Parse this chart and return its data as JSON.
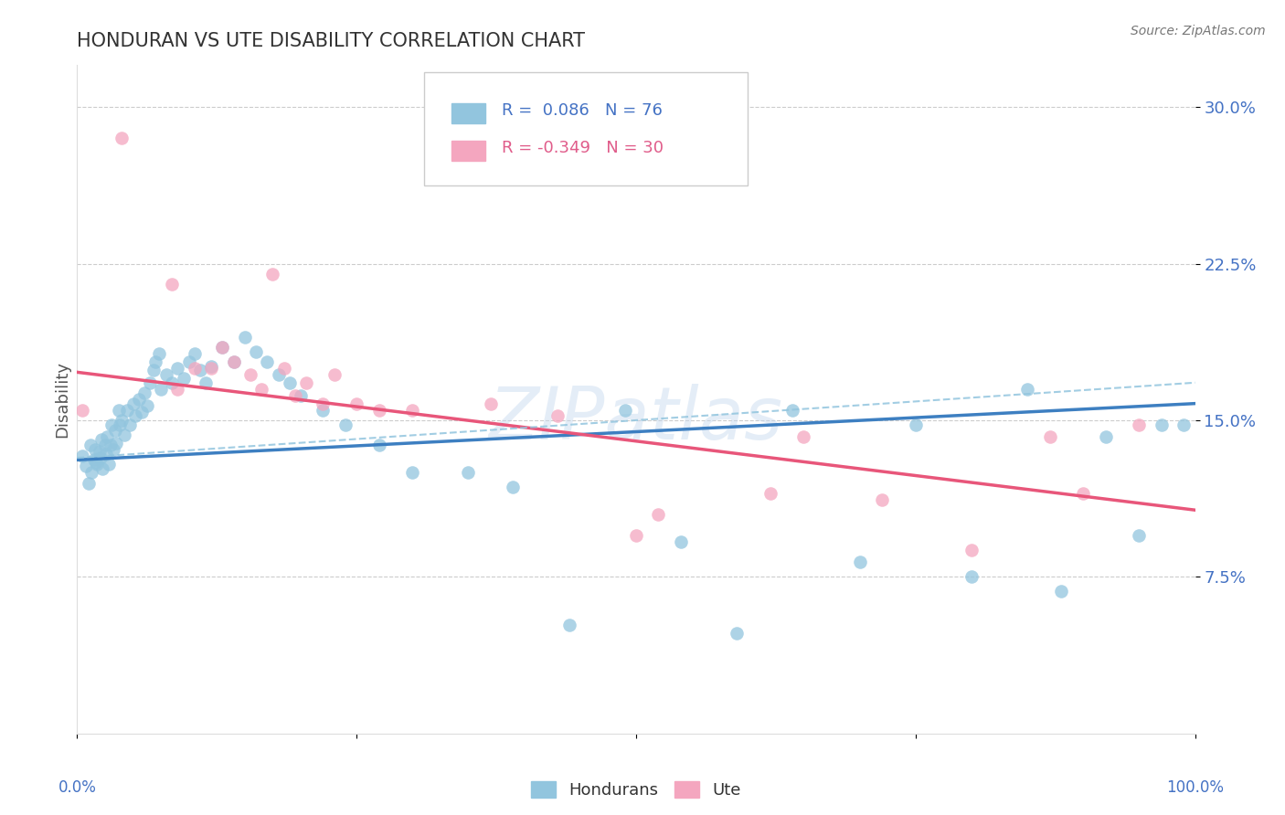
{
  "title": "HONDURAN VS UTE DISABILITY CORRELATION CHART",
  "source": "Source: ZipAtlas.com",
  "ylabel": "Disability",
  "blue_R": 0.086,
  "blue_N": 76,
  "pink_R": -0.349,
  "pink_N": 30,
  "blue_color": "#92c5de",
  "pink_color": "#f4a6bf",
  "blue_line_color": "#3d7fc1",
  "pink_line_color": "#e8567a",
  "dashed_line_color": "#92c5de",
  "legend_label_blue": "Hondurans",
  "legend_label_pink": "Ute",
  "xmin": 0.0,
  "xmax": 1.0,
  "ymin": 0.0,
  "ymax": 0.32,
  "ytick_vals": [
    0.075,
    0.15,
    0.225,
    0.3
  ],
  "ytick_labels": [
    "7.5%",
    "15.0%",
    "22.5%",
    "30.0%"
  ],
  "blue_line_x0": 0.0,
  "blue_line_y0": 0.131,
  "blue_line_x1": 1.0,
  "blue_line_y1": 0.158,
  "pink_line_x0": 0.0,
  "pink_line_y0": 0.173,
  "pink_line_x1": 1.0,
  "pink_line_y1": 0.107,
  "dashed_line_x0": 0.0,
  "dashed_line_y0": 0.132,
  "dashed_line_x1": 1.0,
  "dashed_line_y1": 0.168,
  "blue_x": [
    0.005,
    0.008,
    0.01,
    0.012,
    0.013,
    0.015,
    0.016,
    0.017,
    0.018,
    0.02,
    0.021,
    0.022,
    0.023,
    0.025,
    0.026,
    0.027,
    0.028,
    0.03,
    0.031,
    0.032,
    0.034,
    0.035,
    0.037,
    0.038,
    0.04,
    0.042,
    0.045,
    0.047,
    0.05,
    0.052,
    0.055,
    0.058,
    0.06,
    0.063,
    0.065,
    0.068,
    0.07,
    0.073,
    0.075,
    0.08,
    0.085,
    0.09,
    0.095,
    0.1,
    0.105,
    0.11,
    0.115,
    0.12,
    0.13,
    0.14,
    0.15,
    0.16,
    0.17,
    0.18,
    0.19,
    0.2,
    0.22,
    0.24,
    0.27,
    0.3,
    0.35,
    0.39,
    0.44,
    0.49,
    0.54,
    0.59,
    0.64,
    0.7,
    0.75,
    0.8,
    0.85,
    0.88,
    0.92,
    0.95,
    0.97,
    0.99
  ],
  "blue_y": [
    0.133,
    0.128,
    0.12,
    0.138,
    0.125,
    0.131,
    0.136,
    0.13,
    0.129,
    0.135,
    0.132,
    0.141,
    0.127,
    0.138,
    0.134,
    0.142,
    0.129,
    0.138,
    0.148,
    0.136,
    0.145,
    0.139,
    0.155,
    0.148,
    0.15,
    0.143,
    0.155,
    0.148,
    0.158,
    0.152,
    0.16,
    0.154,
    0.163,
    0.157,
    0.168,
    0.174,
    0.178,
    0.182,
    0.165,
    0.172,
    0.168,
    0.175,
    0.17,
    0.178,
    0.182,
    0.174,
    0.168,
    0.176,
    0.185,
    0.178,
    0.19,
    0.183,
    0.178,
    0.172,
    0.168,
    0.162,
    0.155,
    0.148,
    0.138,
    0.125,
    0.125,
    0.118,
    0.052,
    0.155,
    0.092,
    0.048,
    0.155,
    0.082,
    0.148,
    0.075,
    0.165,
    0.068,
    0.142,
    0.095,
    0.148,
    0.148
  ],
  "pink_x": [
    0.005,
    0.04,
    0.085,
    0.09,
    0.105,
    0.12,
    0.13,
    0.14,
    0.155,
    0.165,
    0.175,
    0.185,
    0.195,
    0.205,
    0.22,
    0.23,
    0.25,
    0.27,
    0.3,
    0.37,
    0.43,
    0.5,
    0.52,
    0.62,
    0.65,
    0.72,
    0.8,
    0.87,
    0.9,
    0.95
  ],
  "pink_y": [
    0.155,
    0.285,
    0.215,
    0.165,
    0.175,
    0.175,
    0.185,
    0.178,
    0.172,
    0.165,
    0.22,
    0.175,
    0.162,
    0.168,
    0.158,
    0.172,
    0.158,
    0.155,
    0.155,
    0.158,
    0.152,
    0.095,
    0.105,
    0.115,
    0.142,
    0.112,
    0.088,
    0.142,
    0.115,
    0.148
  ]
}
